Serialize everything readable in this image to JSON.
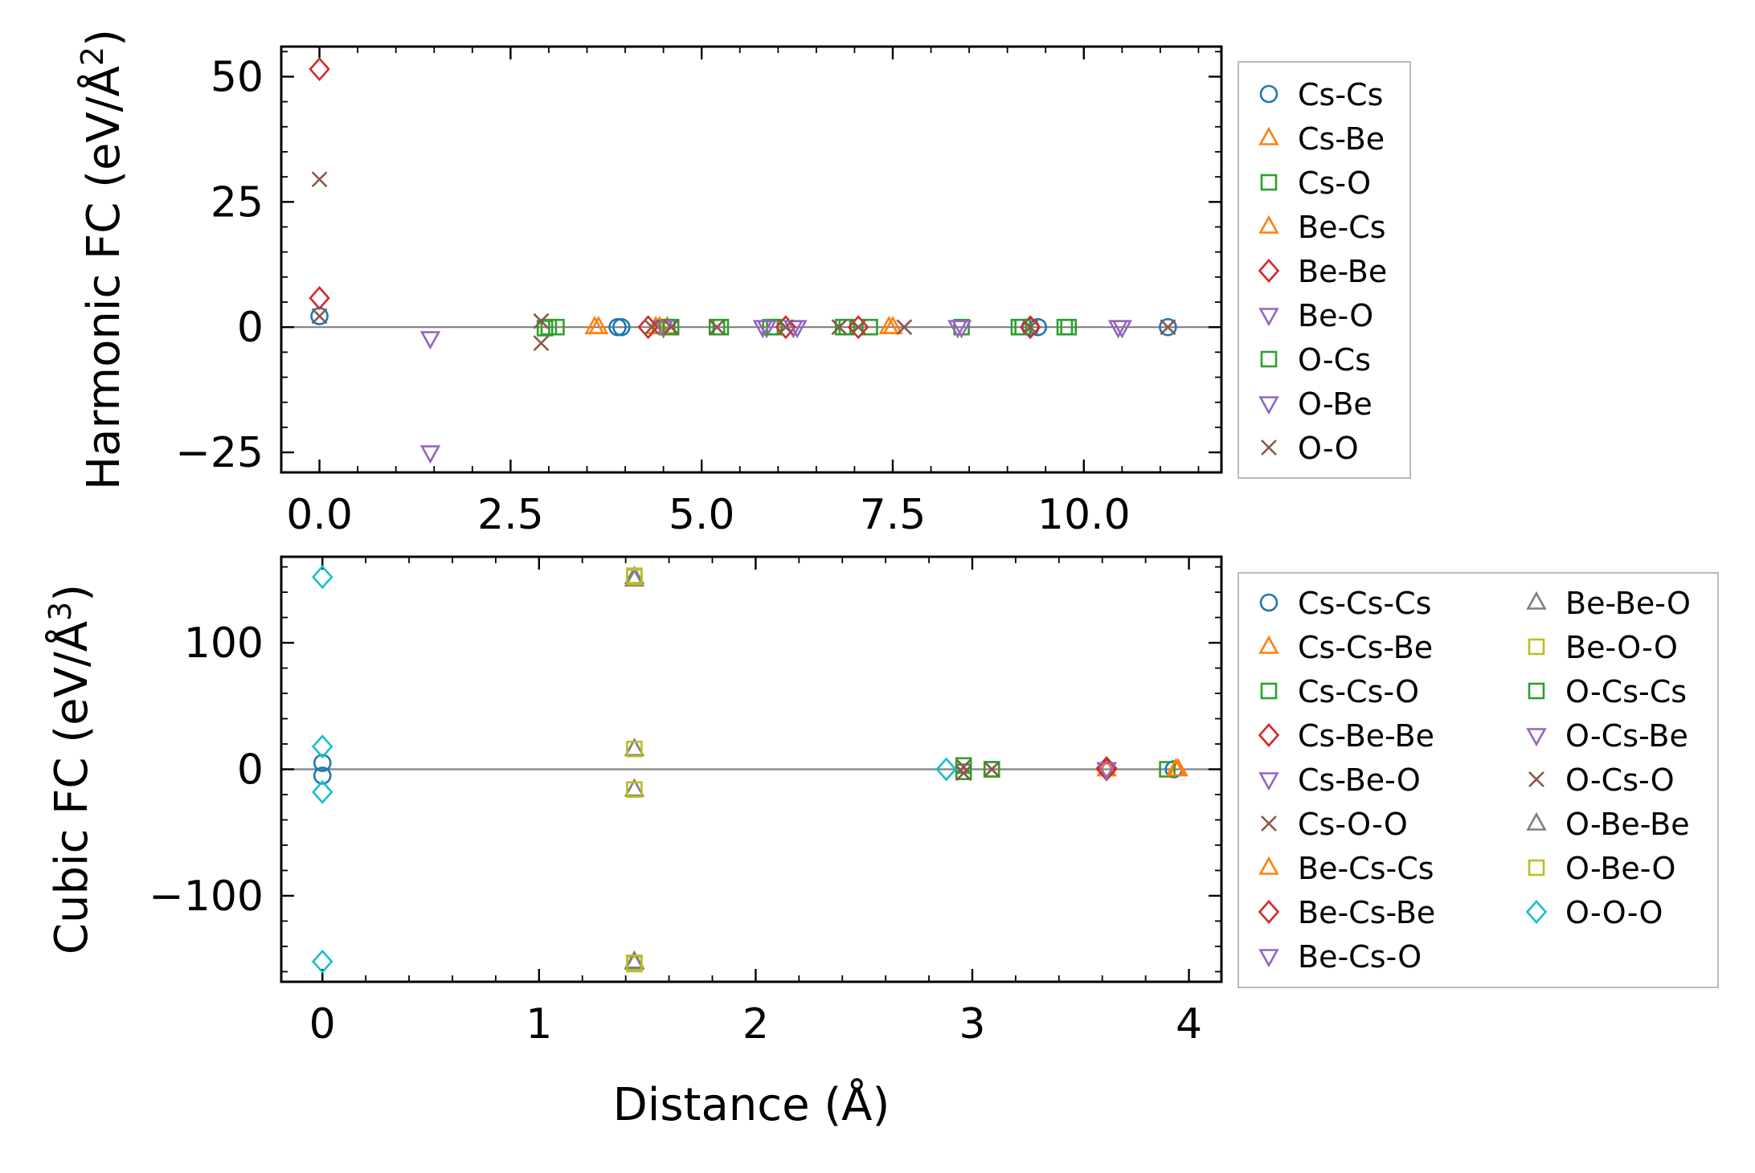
{
  "chart_data": [
    {
      "type": "scatter",
      "ylabel_main": "Harmonic FC (eV/Å",
      "ylabel_sup": "2",
      "ylabel_close": ")",
      "xlabel": "",
      "xlim": [
        -0.5,
        11.8
      ],
      "ylim": [
        -29,
        56
      ],
      "xticks": [
        0.0,
        2.5,
        5.0,
        7.5,
        10.0
      ],
      "xtick_labels": [
        "0.0",
        "2.5",
        "5.0",
        "7.5",
        "10.0"
      ],
      "yticks": [
        50,
        25,
        0,
        -25
      ],
      "ytick_labels": [
        "50",
        "25",
        "0",
        "−25"
      ],
      "legend_position": "outside-right",
      "series": [
        {
          "name": "Cs-Cs",
          "color": "#1f77b4",
          "marker": "circle",
          "points": [
            [
              0,
              2.2
            ],
            [
              3.9,
              0
            ],
            [
              3.95,
              0
            ],
            [
              9.3,
              0
            ],
            [
              9.4,
              0
            ],
            [
              11.1,
              0
            ]
          ]
        },
        {
          "name": "Cs-Be",
          "color": "#ff7f0e",
          "marker": "triangle-up",
          "points": [
            [
              3.6,
              0
            ],
            [
              4.4,
              0
            ],
            [
              4.55,
              0
            ],
            [
              7.5,
              0
            ]
          ]
        },
        {
          "name": "Cs-O",
          "color": "#2ca02c",
          "marker": "square",
          "points": [
            [
              2.95,
              -0.2
            ],
            [
              3.1,
              0
            ],
            [
              4.55,
              0
            ],
            [
              5.2,
              0
            ],
            [
              5.9,
              0
            ],
            [
              6.85,
              0
            ],
            [
              7.2,
              0
            ],
            [
              8.4,
              0
            ],
            [
              9.2,
              0
            ],
            [
              9.75,
              0
            ]
          ]
        },
        {
          "name": "Be-Cs",
          "color": "#ff7f0e",
          "marker": "triangle-up",
          "points": [
            [
              3.65,
              0
            ],
            [
              4.45,
              0
            ],
            [
              7.45,
              0
            ]
          ]
        },
        {
          "name": "Be-Be",
          "color": "#d62728",
          "marker": "diamond",
          "points": [
            [
              0,
              51.5
            ],
            [
              0,
              5.8
            ],
            [
              4.3,
              0
            ],
            [
              6.1,
              0
            ],
            [
              7.05,
              0
            ],
            [
              9.3,
              0
            ]
          ]
        },
        {
          "name": "Be-O",
          "color": "#9467bd",
          "marker": "triangle-down",
          "points": [
            [
              1.45,
              -25
            ],
            [
              1.45,
              -2.2
            ],
            [
              4.5,
              0
            ],
            [
              5.85,
              0
            ],
            [
              6.25,
              0
            ],
            [
              8.4,
              0
            ],
            [
              10.5,
              0
            ]
          ]
        },
        {
          "name": "O-Cs",
          "color": "#2ca02c",
          "marker": "square",
          "points": [
            [
              3.0,
              0
            ],
            [
              4.6,
              0
            ],
            [
              5.25,
              0
            ],
            [
              5.95,
              0
            ],
            [
              6.9,
              0
            ],
            [
              9.15,
              0
            ],
            [
              9.8,
              0
            ]
          ]
        },
        {
          "name": "O-Be",
          "color": "#9467bd",
          "marker": "triangle-down",
          "points": [
            [
              4.5,
              0
            ],
            [
              5.8,
              0
            ],
            [
              6.2,
              0
            ],
            [
              8.35,
              0
            ],
            [
              10.45,
              0
            ]
          ]
        },
        {
          "name": "O-O",
          "color": "#8c564b",
          "marker": "x",
          "points": [
            [
              0,
              29.5
            ],
            [
              0,
              2.2
            ],
            [
              2.9,
              1.2
            ],
            [
              2.9,
              -3.2
            ],
            [
              4.35,
              0
            ],
            [
              4.6,
              0
            ],
            [
              5.2,
              0
            ],
            [
              6.1,
              0
            ],
            [
              6.8,
              0
            ],
            [
              7.05,
              0
            ],
            [
              7.65,
              0
            ],
            [
              9.3,
              0
            ],
            [
              11.1,
              0
            ]
          ]
        }
      ]
    },
    {
      "type": "scatter",
      "ylabel_main": "Cubic FC (eV/Å",
      "ylabel_sup": "3",
      "ylabel_close": ")",
      "xlabel": "Distance (Å)",
      "xlim": [
        -0.19,
        4.15
      ],
      "ylim": [
        -168,
        168
      ],
      "xticks": [
        0,
        1,
        2,
        3,
        4
      ],
      "xtick_labels": [
        "0",
        "1",
        "2",
        "3",
        "4"
      ],
      "yticks": [
        100,
        0,
        -100
      ],
      "ytick_labels": [
        "100",
        "0",
        "−100"
      ],
      "legend_position": "outside-right",
      "series": [
        {
          "name": "Cs-Cs-Cs",
          "color": "#1f77b4",
          "marker": "circle",
          "points": [
            [
              0,
              5
            ],
            [
              0,
              -5
            ],
            [
              3.93,
              0
            ]
          ]
        },
        {
          "name": "Cs-Cs-Be",
          "color": "#ff7f0e",
          "marker": "triangle-up",
          "points": [
            [
              3.62,
              0
            ],
            [
              3.95,
              0
            ]
          ]
        },
        {
          "name": "Cs-Cs-O",
          "color": "#2ca02c",
          "marker": "square",
          "points": [
            [
              2.96,
              -2
            ],
            [
              3.09,
              0
            ],
            [
              3.9,
              0
            ]
          ]
        },
        {
          "name": "Cs-Be-Be",
          "color": "#d62728",
          "marker": "diamond",
          "points": [
            [
              3.62,
              1
            ]
          ]
        },
        {
          "name": "Cs-Be-O",
          "color": "#9467bd",
          "marker": "triangle-down",
          "points": [
            [
              3.62,
              0
            ]
          ]
        },
        {
          "name": "Cs-O-O",
          "color": "#8c564b",
          "marker": "x",
          "points": [
            [
              2.96,
              2
            ],
            [
              3.09,
              0
            ]
          ]
        },
        {
          "name": "Be-Cs-Cs",
          "color": "#ff7f0e",
          "marker": "triangle-up",
          "points": [
            [
              3.62,
              0
            ],
            [
              3.94,
              0
            ]
          ]
        },
        {
          "name": "Be-Cs-Be",
          "color": "#d62728",
          "marker": "diamond",
          "points": [
            [
              3.62,
              0
            ]
          ]
        },
        {
          "name": "Be-Cs-O",
          "color": "#9467bd",
          "marker": "triangle-down",
          "points": [
            [
              3.62,
              0
            ]
          ]
        },
        {
          "name": "Be-Be-O",
          "color": "#7f7f7f",
          "marker": "triangle-up",
          "points": [
            [
              1.44,
              152
            ],
            [
              1.44,
              16
            ],
            [
              1.44,
              -16
            ],
            [
              1.44,
              -153
            ]
          ]
        },
        {
          "name": "Be-O-O",
          "color": "#bcbd22",
          "marker": "square",
          "points": [
            [
              1.44,
              153
            ],
            [
              1.44,
              16
            ],
            [
              1.44,
              -16
            ],
            [
              1.44,
              -154
            ]
          ]
        },
        {
          "name": "O-Cs-Cs",
          "color": "#2ca02c",
          "marker": "square",
          "points": [
            [
              2.96,
              3
            ],
            [
              3.09,
              0
            ]
          ]
        },
        {
          "name": "O-Cs-Be",
          "color": "#9467bd",
          "marker": "triangle-down",
          "points": [
            [
              3.62,
              0
            ]
          ]
        },
        {
          "name": "O-Cs-O",
          "color": "#8c564b",
          "marker": "x",
          "points": [
            [
              2.96,
              -3
            ],
            [
              3.09,
              0
            ]
          ]
        },
        {
          "name": "O-Be-Be",
          "color": "#7f7f7f",
          "marker": "triangle-up",
          "points": [
            [
              1.44,
              150
            ],
            [
              1.44,
              -152
            ]
          ]
        },
        {
          "name": "O-Be-O",
          "color": "#bcbd22",
          "marker": "square",
          "points": [
            [
              1.44,
              152
            ],
            [
              1.44,
              -153
            ]
          ]
        },
        {
          "name": "O-O-O",
          "color": "#17becf",
          "marker": "diamond",
          "points": [
            [
              0,
              152
            ],
            [
              0,
              18
            ],
            [
              0,
              -18
            ],
            [
              0,
              -152
            ],
            [
              2.88,
              0
            ]
          ]
        }
      ]
    }
  ]
}
